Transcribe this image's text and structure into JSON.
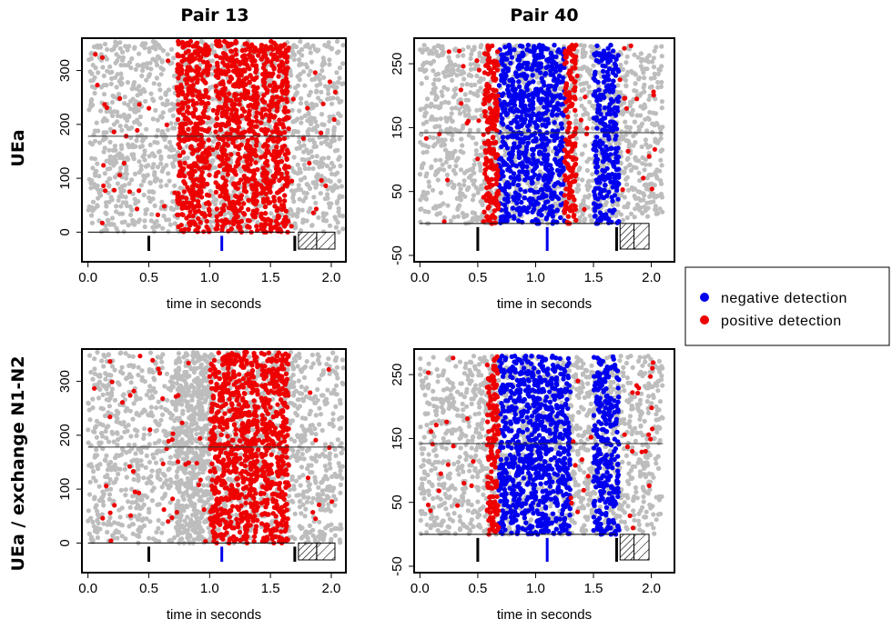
{
  "column_titles": [
    "Pair 13",
    "Pair 40"
  ],
  "row_labels": [
    "UEa",
    "UEa / exchange N1-N2"
  ],
  "legend": {
    "items": [
      {
        "label": "negative detection",
        "color": "#0000ee"
      },
      {
        "label": "positive detection",
        "color": "#ee0000"
      }
    ]
  },
  "colors": {
    "background_points": "#bdbdbd",
    "negative": "#0000ee",
    "positive": "#ee0000"
  },
  "chart_data": [
    {
      "type": "scatter",
      "column": "Pair 13",
      "row": "UEa",
      "xlabel": "time in seconds",
      "xlim": [
        -0.05,
        2.12
      ],
      "ylim": [
        -55,
        360
      ],
      "xticks": [
        "0.0",
        "0.5",
        "1.0",
        "1.5",
        "2.0"
      ],
      "yticks": [
        "0",
        "100",
        "200",
        "300"
      ],
      "ntrials": 355,
      "hline": 178,
      "event_markers": [
        {
          "x": 0.5,
          "color": "#000000"
        },
        {
          "x": 1.1,
          "color": "#0000ee"
        },
        {
          "x": 1.7,
          "color": "#000000"
        }
      ],
      "hatch_boxes": [
        [
          1.73,
          1.88
        ],
        [
          1.88,
          2.03
        ]
      ],
      "positive_bands": [
        [
          0.73,
          1.0
        ],
        [
          1.05,
          1.4
        ],
        [
          1.42,
          1.65
        ]
      ],
      "negative_bands": [],
      "gray_range": [
        0.0,
        2.1
      ]
    },
    {
      "type": "scatter",
      "column": "Pair 40",
      "row": "UEa",
      "xlabel": "time in seconds",
      "xlim": [
        -0.05,
        2.2
      ],
      "ylim": [
        -60,
        290
      ],
      "xticks": [
        "0.0",
        "0.5",
        "1.0",
        "1.5",
        "2.0"
      ],
      "yticks": [
        "-50",
        "50",
        "150",
        "250"
      ],
      "ntrials": 280,
      "hline": 142,
      "event_markers": [
        {
          "x": 0.5,
          "color": "#000000"
        },
        {
          "x": 1.1,
          "color": "#0000ee"
        },
        {
          "x": 1.7,
          "color": "#000000"
        }
      ],
      "hatch_boxes": [
        [
          1.73,
          1.85
        ],
        [
          1.85,
          1.98
        ]
      ],
      "positive_bands": [
        [
          0.55,
          0.68
        ],
        [
          1.25,
          1.35
        ]
      ],
      "negative_bands": [
        [
          0.68,
          1.25
        ],
        [
          1.5,
          1.72
        ]
      ],
      "gray_range": [
        0.0,
        2.1
      ]
    },
    {
      "type": "scatter",
      "column": "Pair 13",
      "row": "UEa / exchange N1-N2",
      "xlabel": "time in seconds",
      "xlim": [
        -0.05,
        2.12
      ],
      "ylim": [
        -55,
        360
      ],
      "xticks": [
        "0.0",
        "0.5",
        "1.0",
        "1.5",
        "2.0"
      ],
      "yticks": [
        "0",
        "100",
        "200",
        "300"
      ],
      "ntrials": 355,
      "hline": 178,
      "event_markers": [
        {
          "x": 0.5,
          "color": "#000000"
        },
        {
          "x": 1.1,
          "color": "#0000ee"
        },
        {
          "x": 1.7,
          "color": "#000000"
        }
      ],
      "hatch_boxes": [
        [
          1.73,
          1.88
        ],
        [
          1.88,
          2.03
        ]
      ],
      "positive_bands": [
        [
          1.0,
          1.4
        ],
        [
          1.42,
          1.65
        ]
      ],
      "negative_bands": [],
      "gray_range": [
        0.0,
        2.1
      ]
    },
    {
      "type": "scatter",
      "column": "Pair 40",
      "row": "UEa / exchange N1-N2",
      "xlabel": "time in seconds",
      "xlim": [
        -0.05,
        2.2
      ],
      "ylim": [
        -60,
        290
      ],
      "xticks": [
        "0.0",
        "0.5",
        "1.0",
        "1.5",
        "2.0"
      ],
      "yticks": [
        "-50",
        "50",
        "150",
        "250"
      ],
      "ntrials": 280,
      "hline": 142,
      "event_markers": [
        {
          "x": 0.5,
          "color": "#000000"
        },
        {
          "x": 1.1,
          "color": "#0000ee"
        },
        {
          "x": 1.7,
          "color": "#000000"
        }
      ],
      "hatch_boxes": [
        [
          1.73,
          1.85
        ],
        [
          1.85,
          1.98
        ]
      ],
      "positive_bands": [
        [
          0.58,
          0.68
        ]
      ],
      "negative_bands": [
        [
          0.68,
          1.3
        ],
        [
          1.5,
          1.72
        ]
      ],
      "gray_range": [
        0.0,
        2.1
      ]
    }
  ]
}
